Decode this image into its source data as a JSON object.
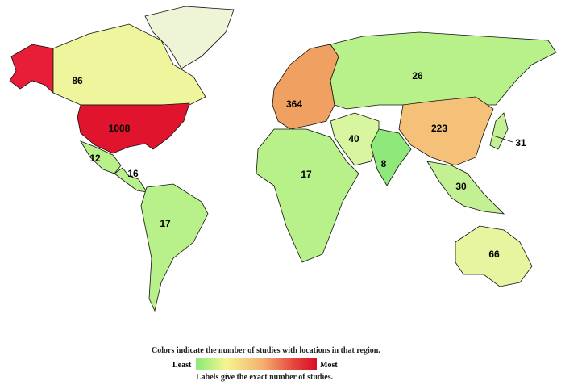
{
  "legend": {
    "title": "Colors indicate the number of studies with locations in that region.",
    "least": "Least",
    "most": "Most",
    "subtitle": "Labels give the exact number of studies.",
    "gradient": [
      "#8aea78",
      "#f5f590",
      "#f4b070",
      "#dc0a28"
    ]
  },
  "regions": [
    {
      "name": "Alaska",
      "label": "",
      "color": "#e81e38"
    },
    {
      "name": "Canada",
      "label": "86",
      "color": "#eef59c"
    },
    {
      "name": "Greenland",
      "label": "",
      "color": "#eef5d6"
    },
    {
      "name": "United States",
      "label": "1008",
      "color": "#e0142c"
    },
    {
      "name": "Mexico",
      "label": "12",
      "color": "#b8f08a"
    },
    {
      "name": "Central America",
      "label": "16",
      "color": "#b8f08a"
    },
    {
      "name": "South America",
      "label": "17",
      "color": "#b8f08a"
    },
    {
      "name": "Europe",
      "label": "364",
      "color": "#f0a060"
    },
    {
      "name": "Russia",
      "label": "26",
      "color": "#b8f08a"
    },
    {
      "name": "China",
      "label": "223",
      "color": "#f5c078"
    },
    {
      "name": "Middle East",
      "label": "40",
      "color": "#d8f5a0"
    },
    {
      "name": "South Asia",
      "label": "8",
      "color": "#8ee87a"
    },
    {
      "name": "Africa",
      "label": "17",
      "color": "#b8f08a"
    },
    {
      "name": "Southeast Asia",
      "label": "30",
      "color": "#c4f094"
    },
    {
      "name": "Japan",
      "label": "31",
      "color": "#c4f094"
    },
    {
      "name": "Australia",
      "label": "66",
      "color": "#e8f5a0"
    }
  ]
}
